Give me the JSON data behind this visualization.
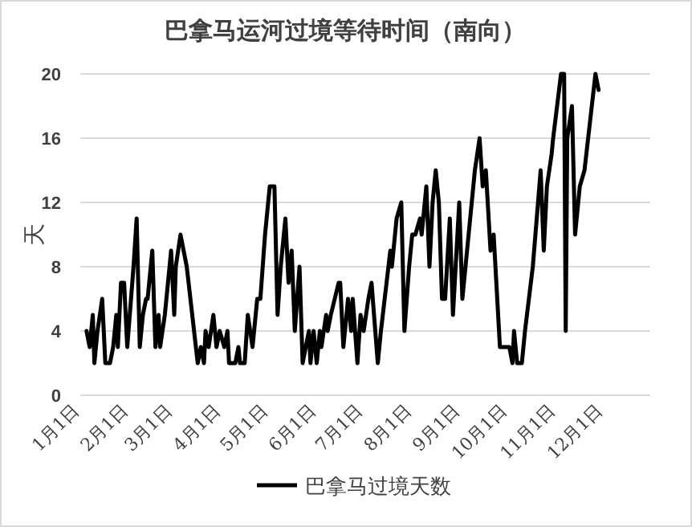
{
  "chart_data": {
    "type": "line",
    "title": "巴拿马运河过境等待时间（南向）",
    "ylabel": "天",
    "x": [
      "--01-05",
      "--01-07",
      "--01-09",
      "--01-10",
      "--01-12",
      "--01-15",
      "--01-17",
      "--01-20",
      "--01-22",
      "--01-24",
      "--01-25",
      "--01-27",
      "--01-29",
      "--01-31",
      "--02-04",
      "--02-06",
      "--02-08",
      "--02-10",
      "--02-12",
      "--02-13",
      "--02-16",
      "--02-18",
      "--02-20",
      "--02-21",
      "--02-24",
      "--02-28",
      "--03-02",
      "--03-03",
      "--03-06",
      "--03-10",
      "--03-17",
      "--03-19",
      "--03-21",
      "--03-22",
      "--03-24",
      "--03-27",
      "--03-29",
      "--03-31",
      "--04-03",
      "--04-05",
      "--04-06",
      "--04-10",
      "--04-12",
      "--04-13",
      "--04-16",
      "--04-18",
      "--04-21",
      "--04-24",
      "--04-26",
      "--04-29",
      "--05-02",
      "--05-05",
      "--05-07",
      "--05-09",
      "--05-12",
      "--05-14",
      "--05-16",
      "--05-18",
      "--05-21",
      "--05-23",
      "--05-27",
      "--05-28",
      "--05-30",
      "--06-01",
      "--06-03",
      "--06-04",
      "--06-07",
      "--06-08",
      "--06-10",
      "--06-15",
      "--06-16",
      "--06-18",
      "--06-21",
      "--06-23",
      "--06-24",
      "--06-27",
      "--06-29",
      "--07-01",
      "--07-04",
      "--07-06",
      "--07-10",
      "--07-12",
      "--07-18",
      "--07-19",
      "--07-22",
      "--07-25",
      "--07-27",
      "--07-30",
      "--08-01",
      "--08-03",
      "--08-06",
      "--08-07",
      "--08-10",
      "--08-12",
      "--08-14",
      "--08-16",
      "--08-18",
      "--08-20",
      "--08-22",
      "--08-25",
      "--08-27",
      "--08-31",
      "--09-02",
      "--09-08",
      "--09-10",
      "--09-13",
      "--09-15",
      "--09-17",
      "--09-20",
      "--09-22",
      "--09-26",
      "--10-02",
      "--10-04",
      "--10-05",
      "--10-07",
      "--10-10",
      "--10-12",
      "--10-17",
      "--10-22",
      "--10-24",
      "--10-26",
      "--10-29",
      "--10-30",
      "--11-04",
      "--11-06",
      "--11-07",
      "--11-08",
      "--11-11",
      "--11-13",
      "--11-16",
      "--11-19",
      "--11-26",
      "--11-28"
    ],
    "series": [
      {
        "name": "巴拿马过境天数",
        "color": "#000000",
        "values": [
          4,
          3,
          5,
          2,
          4,
          6,
          2,
          2,
          3,
          5,
          3,
          7,
          7,
          3,
          8,
          11,
          3,
          5,
          6,
          6,
          9,
          3,
          5,
          3,
          5,
          9,
          5,
          8,
          10,
          8,
          2,
          3,
          2,
          4,
          3,
          5,
          3,
          4,
          3,
          4,
          2,
          2,
          3,
          2,
          2,
          5,
          3,
          6,
          6,
          10,
          13,
          13,
          5,
          8,
          11,
          7,
          9,
          4,
          8,
          2,
          4,
          2,
          4,
          2,
          4,
          3,
          5,
          4,
          5,
          7,
          7,
          3,
          6,
          4,
          6,
          2,
          5,
          4,
          6,
          7,
          2,
          4,
          9,
          8,
          11,
          12,
          4,
          8,
          10,
          10,
          11,
          10,
          13,
          8,
          12,
          14,
          12,
          6,
          6,
          11,
          5,
          12,
          6,
          12,
          14,
          16,
          13,
          14,
          9,
          10,
          3,
          3,
          2,
          4,
          2,
          2,
          4,
          8,
          14,
          9,
          13,
          15,
          16,
          20,
          20,
          4,
          16,
          18,
          10,
          13,
          14,
          20,
          19
        ]
      }
    ],
    "xlim": [
      "--01-01",
      "--12-31"
    ],
    "ylim": [
      0,
      20
    ],
    "yticks": [
      0,
      4,
      8,
      12,
      16,
      20
    ],
    "xticks": [
      {
        "value": "--01-01",
        "label": "1月1日"
      },
      {
        "value": "--02-01",
        "label": "2月1日"
      },
      {
        "value": "--03-01",
        "label": "3月1日"
      },
      {
        "value": "--04-01",
        "label": "4月1日"
      },
      {
        "value": "--05-01",
        "label": "5月1日"
      },
      {
        "value": "--06-01",
        "label": "6月1日"
      },
      {
        "value": "--07-01",
        "label": "7月1日"
      },
      {
        "value": "--08-01",
        "label": "8月1日"
      },
      {
        "value": "--09-01",
        "label": "9月1日"
      },
      {
        "value": "--10-01",
        "label": "10月1日"
      },
      {
        "value": "--11-01",
        "label": "11月1日"
      },
      {
        "value": "--12-01",
        "label": "12月1日"
      }
    ],
    "grid": "y",
    "legend": "bottom",
    "marker": "none",
    "line_style": "solid"
  }
}
